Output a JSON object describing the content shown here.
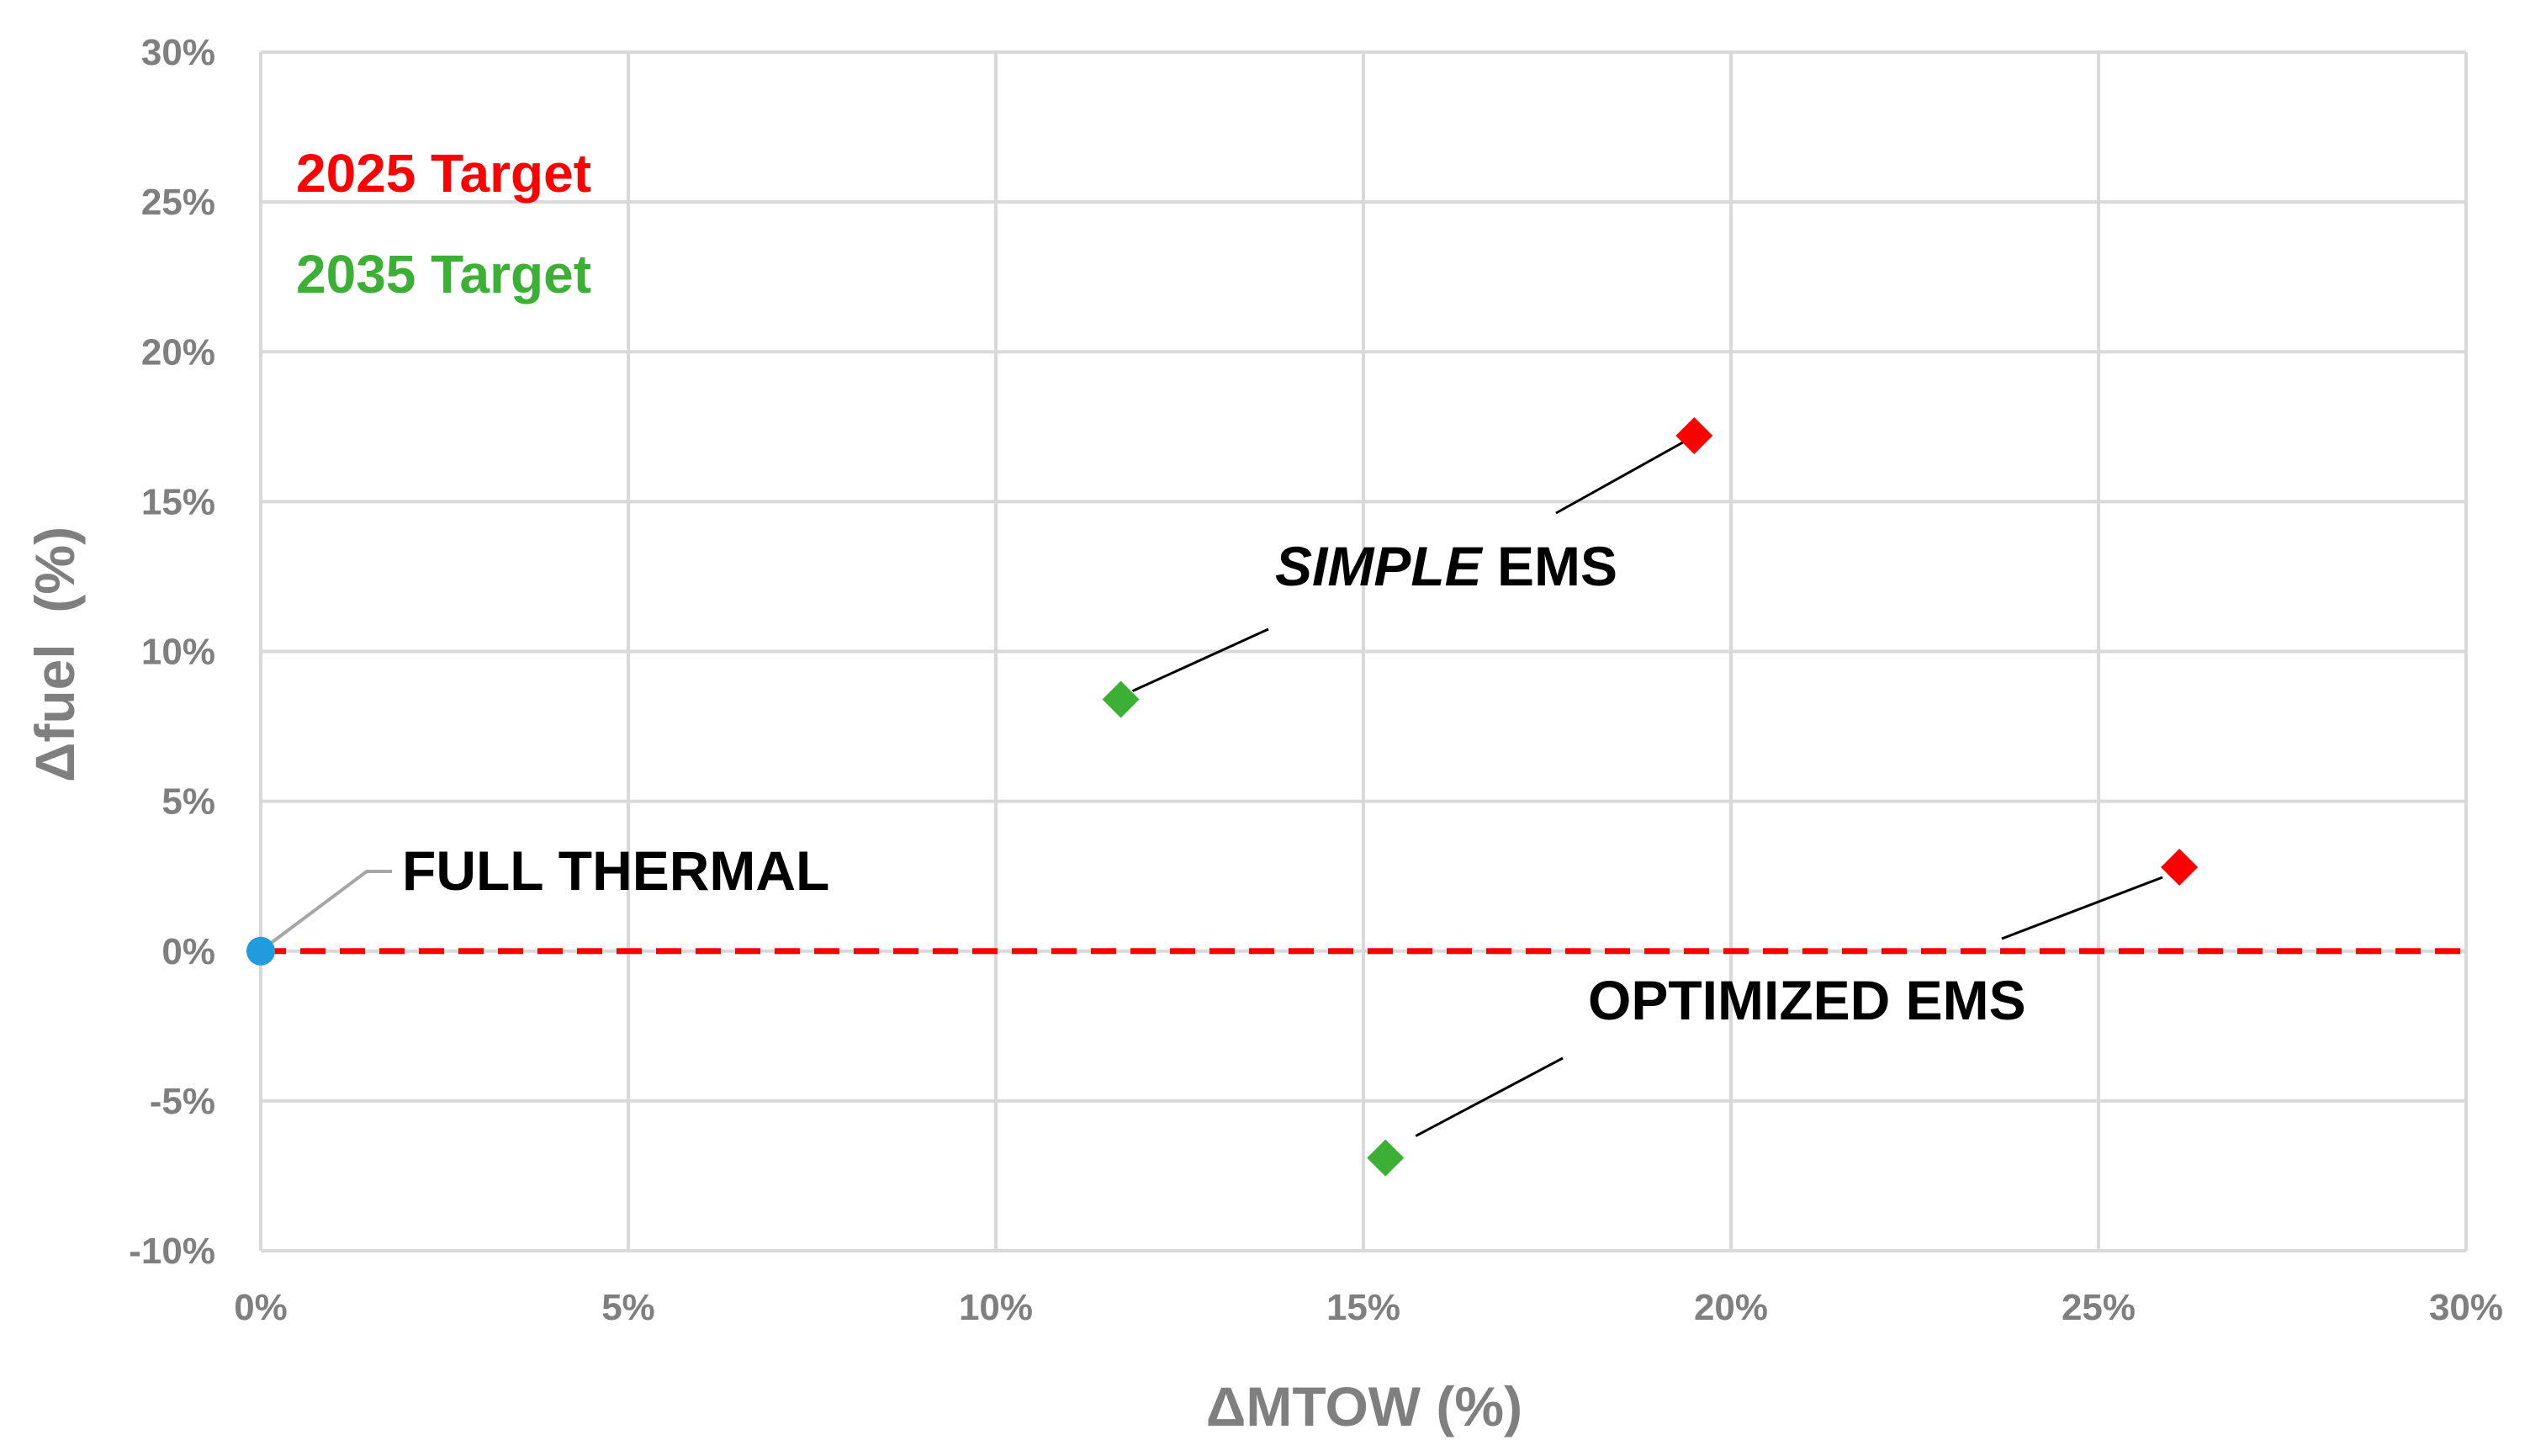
{
  "chart_data": {
    "type": "scatter",
    "title": "",
    "xlabel": "ΔMTOW (%)",
    "ylabel": "Δfuel  (%)",
    "xlim": [
      0,
      30
    ],
    "ylim": [
      -10,
      30
    ],
    "x_ticks": [
      0,
      5,
      10,
      15,
      20,
      25,
      30
    ],
    "y_ticks": [
      -10,
      -5,
      0,
      5,
      10,
      15,
      20,
      25,
      30
    ],
    "x_tick_labels": [
      "0%",
      "5%",
      "10%",
      "15%",
      "20%",
      "25%",
      "30%"
    ],
    "y_tick_labels": [
      "-10%",
      "-5%",
      "0%",
      "5%",
      "10%",
      "15%",
      "20%",
      "25%",
      "30%"
    ],
    "grid": true,
    "reference_line": {
      "y": 0,
      "style": "dashed",
      "color": "#ff0000"
    },
    "legend": {
      "placement": "top-left",
      "entries": [
        {
          "label": "2025 Target",
          "color": "#ff0000"
        },
        {
          "label": "2035 Target",
          "color": "#3cb034"
        }
      ]
    },
    "series": [
      {
        "name": "2025 Target",
        "color": "#ff0000",
        "marker": "diamond",
        "points": [
          {
            "x": 19.5,
            "y": 17.2
          },
          {
            "x": 26.1,
            "y": 2.8
          }
        ]
      },
      {
        "name": "2035 Target",
        "color": "#3cb034",
        "marker": "diamond",
        "points": [
          {
            "x": 11.7,
            "y": 8.4
          },
          {
            "x": 15.3,
            "y": -6.9
          }
        ]
      },
      {
        "color": "#1f9bde",
        "marker": "circle",
        "points": [
          {
            "x": 0,
            "y": 0
          }
        ]
      }
    ],
    "annotations": [
      {
        "id": "full-thermal",
        "text": "FULL THERMAL",
        "italic_prefix": ""
      },
      {
        "id": "simple-ems",
        "text": " EMS",
        "italic_prefix": "SIMPLE"
      },
      {
        "id": "optimized-ems",
        "text": "OPTIMIZED EMS",
        "italic_prefix": ""
      }
    ]
  }
}
